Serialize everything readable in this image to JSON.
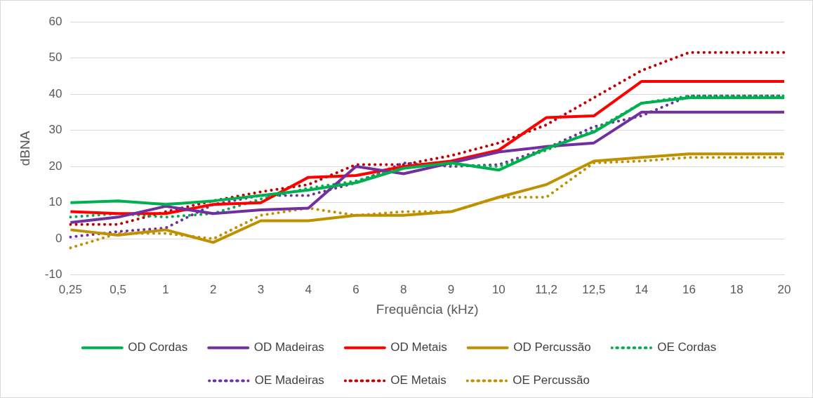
{
  "chart_data": {
    "type": "line",
    "xlabel": "Frequência (kHz)",
    "ylabel": "dBNA",
    "categories": [
      "0,25",
      "0,5",
      "1",
      "2",
      "3",
      "4",
      "6",
      "8",
      "9",
      "10",
      "11,2",
      "12,5",
      "14",
      "16",
      "18",
      "20"
    ],
    "ylim": [
      -10,
      60
    ],
    "yticks": [
      -10,
      0,
      10,
      20,
      30,
      40,
      50,
      60
    ],
    "grid": "y",
    "legend": "bottom",
    "marker": "none",
    "series": [
      {
        "name": "OD Cordas",
        "color": "#00b050",
        "line_style": "solid",
        "values": [
          10,
          10.5,
          9.5,
          10.5,
          12,
          13.5,
          15.5,
          19.5,
          21,
          19,
          25,
          29.5,
          37.5,
          39,
          39,
          39
        ]
      },
      {
        "name": "OD Madeiras",
        "color": "#7030a0",
        "line_style": "solid",
        "values": [
          4.5,
          6,
          9,
          7,
          8,
          8.5,
          20,
          18,
          21,
          24,
          25.5,
          26.5,
          35,
          35,
          35,
          35
        ]
      },
      {
        "name": "OD Metais",
        "color": "#ff0000",
        "line_style": "solid",
        "values": [
          7.5,
          7,
          7,
          9.5,
          10,
          17,
          17.5,
          20,
          21.5,
          24.5,
          33.5,
          34,
          43.5,
          43.5,
          43.5,
          43.5
        ]
      },
      {
        "name": "OD Percussão",
        "color": "#bf9000",
        "line_style": "solid",
        "values": [
          2.5,
          1,
          2.5,
          -1,
          5,
          5,
          6.5,
          6.5,
          7.5,
          11.5,
          15,
          21.5,
          22.5,
          23.5,
          23.5,
          23.5
        ]
      },
      {
        "name": "OE Cordas",
        "color": "#00b050",
        "line_style": "dotted",
        "values": [
          6,
          7,
          6,
          7,
          11,
          14,
          16,
          20,
          20.5,
          20,
          24.5,
          30,
          37.5,
          39.5,
          39.5,
          39.5
        ]
      },
      {
        "name": "OE Madeiras",
        "color": "#7030a0",
        "line_style": "dotted",
        "values": [
          0.5,
          2,
          3,
          9.5,
          12,
          12,
          15.5,
          21,
          20,
          20.5,
          25,
          31,
          34,
          39.5,
          39.5,
          39.5
        ]
      },
      {
        "name": "OE Metais",
        "color": "#c00000",
        "line_style": "dotted",
        "values": [
          4,
          4,
          7.5,
          10.5,
          13,
          15,
          20.5,
          20.5,
          23,
          26.5,
          31.5,
          39,
          46.5,
          51.5,
          51.5,
          51.5
        ]
      },
      {
        "name": "OE Percussão",
        "color": "#bf9000",
        "line_style": "dotted",
        "values": [
          -2.5,
          1.5,
          1.5,
          0,
          6.5,
          8.5,
          6.5,
          7.5,
          7.5,
          11.5,
          11.5,
          21,
          21.5,
          22.5,
          22.5,
          22.5
        ]
      }
    ]
  }
}
